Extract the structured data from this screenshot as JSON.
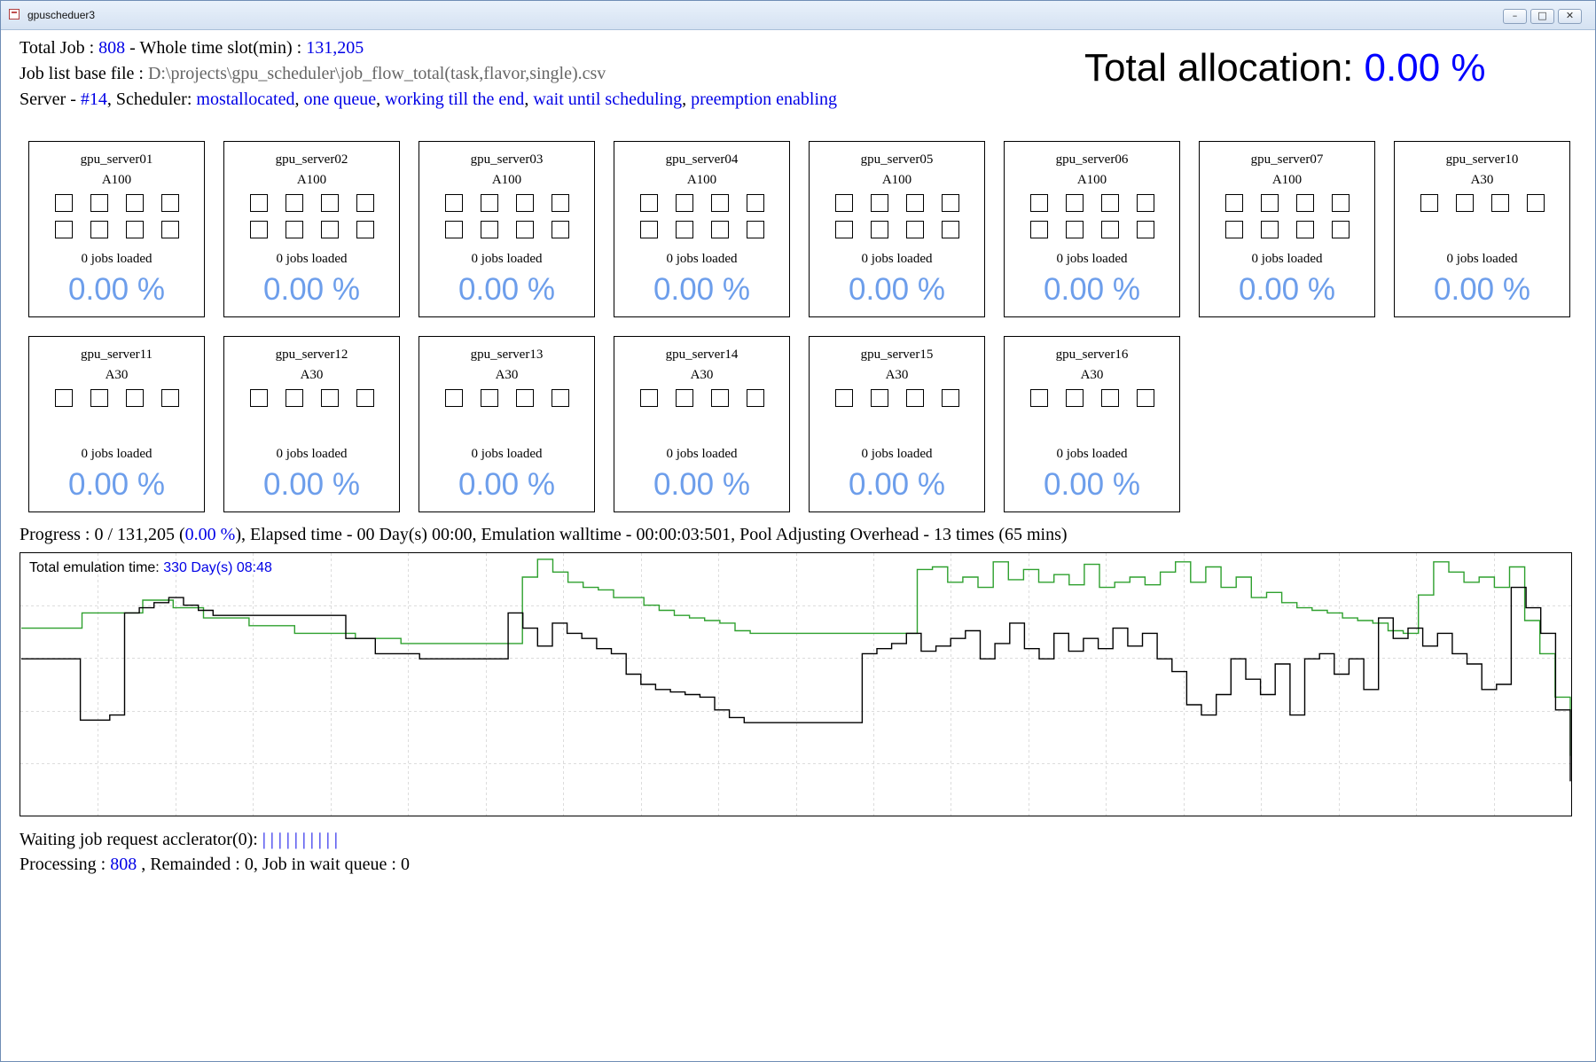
{
  "window": {
    "title": "gpuscheduer3"
  },
  "header": {
    "total_job_label": "Total Job : ",
    "total_job": "808",
    "whole_slot_label": " - Whole time slot(min) : ",
    "whole_slot": "131,205",
    "base_file_label": "Job list base file : ",
    "base_file": "D:\\projects\\gpu_scheduler\\job_flow_total(task,flavor,single).csv",
    "server_label": "Server - ",
    "server_count": "#14",
    "scheduler_label": ", Scheduler: ",
    "scheduler": [
      "mostallocated",
      "one queue",
      "working till the end",
      "wait until scheduling",
      "preemption enabling"
    ],
    "sep": ", "
  },
  "total_allocation": {
    "label": "Total allocation: ",
    "value": "0.00 %"
  },
  "servers": [
    {
      "name": "gpu_server01",
      "model": "A100",
      "gpus": 8,
      "jobs": "0 jobs loaded",
      "pct": "0.00 %"
    },
    {
      "name": "gpu_server02",
      "model": "A100",
      "gpus": 8,
      "jobs": "0 jobs loaded",
      "pct": "0.00 %"
    },
    {
      "name": "gpu_server03",
      "model": "A100",
      "gpus": 8,
      "jobs": "0 jobs loaded",
      "pct": "0.00 %"
    },
    {
      "name": "gpu_server04",
      "model": "A100",
      "gpus": 8,
      "jobs": "0 jobs loaded",
      "pct": "0.00 %"
    },
    {
      "name": "gpu_server05",
      "model": "A100",
      "gpus": 8,
      "jobs": "0 jobs loaded",
      "pct": "0.00 %"
    },
    {
      "name": "gpu_server06",
      "model": "A100",
      "gpus": 8,
      "jobs": "0 jobs loaded",
      "pct": "0.00 %"
    },
    {
      "name": "gpu_server07",
      "model": "A100",
      "gpus": 8,
      "jobs": "0 jobs loaded",
      "pct": "0.00 %"
    },
    {
      "name": "gpu_server10",
      "model": "A30",
      "gpus": 4,
      "jobs": "0 jobs loaded",
      "pct": "0.00 %"
    },
    {
      "name": "gpu_server11",
      "model": "A30",
      "gpus": 4,
      "jobs": "0 jobs loaded",
      "pct": "0.00 %"
    },
    {
      "name": "gpu_server12",
      "model": "A30",
      "gpus": 4,
      "jobs": "0 jobs loaded",
      "pct": "0.00 %"
    },
    {
      "name": "gpu_server13",
      "model": "A30",
      "gpus": 4,
      "jobs": "0 jobs loaded",
      "pct": "0.00 %"
    },
    {
      "name": "gpu_server14",
      "model": "A30",
      "gpus": 4,
      "jobs": "0 jobs loaded",
      "pct": "0.00 %"
    },
    {
      "name": "gpu_server15",
      "model": "A30",
      "gpus": 4,
      "jobs": "0 jobs loaded",
      "pct": "0.00 %"
    },
    {
      "name": "gpu_server16",
      "model": "A30",
      "gpus": 4,
      "jobs": "0 jobs loaded",
      "pct": "0.00 %"
    }
  ],
  "progress": {
    "prefix": "Progress : 0 / 131,205 (",
    "pct": "0.00 %",
    "suffix": "), Elapsed time - 00 Day(s) 00:00, Emulation walltime - 00:00:03:501, Pool Adjusting Overhead - 13 times (65 mins)"
  },
  "chart_data": {
    "type": "line",
    "title": "",
    "label": "Total emulation time: ",
    "label_value": "330 Day(s) 08:48",
    "x_range": [
      0,
      131205
    ],
    "y_range": [
      0,
      100
    ],
    "grid": true,
    "series": [
      {
        "color": "#2ea02e",
        "values": [
          72,
          72,
          72,
          72,
          78,
          78,
          78,
          78,
          83,
          83,
          80,
          80,
          76,
          76,
          76,
          73,
          73,
          73,
          70,
          70,
          70,
          70,
          68,
          68,
          68,
          66,
          66,
          66,
          66,
          66,
          66,
          66,
          66,
          92,
          99,
          94,
          90,
          88,
          87,
          84,
          84,
          81,
          79,
          77,
          76,
          75,
          74,
          71,
          70,
          70,
          70,
          70,
          70,
          70,
          70,
          70,
          70,
          70,
          70,
          95,
          96,
          90,
          92,
          88,
          98,
          91,
          95,
          90,
          93,
          89,
          97,
          88,
          90,
          92,
          89,
          94,
          98,
          90,
          96,
          88,
          92,
          84,
          86,
          82,
          80,
          79,
          78,
          76,
          75,
          74,
          71,
          70,
          85,
          98,
          94,
          90,
          92,
          88,
          96,
          75,
          62,
          45,
          22
        ]
      },
      {
        "color": "#000000",
        "values": [
          60,
          60,
          60,
          60,
          36,
          36,
          38,
          78,
          80,
          82,
          84,
          81,
          79,
          77,
          77,
          77,
          77,
          77,
          77,
          77,
          77,
          77,
          68,
          68,
          62,
          62,
          62,
          60,
          60,
          60,
          60,
          60,
          60,
          78,
          72,
          65,
          74,
          70,
          68,
          64,
          62,
          54,
          50,
          48,
          47,
          46,
          45,
          40,
          37,
          35,
          35,
          35,
          35,
          35,
          35,
          35,
          35,
          62,
          64,
          66,
          70,
          63,
          65,
          68,
          71,
          60,
          66,
          74,
          64,
          60,
          70,
          63,
          68,
          64,
          72,
          65,
          70,
          60,
          55,
          42,
          38,
          46,
          60,
          52,
          46,
          58,
          38,
          60,
          62,
          54,
          60,
          48,
          76,
          68,
          72,
          65,
          70,
          62,
          58,
          48,
          50,
          88,
          80,
          70,
          40,
          12
        ]
      }
    ]
  },
  "waiting": {
    "label": "Waiting job request acclerator(0): ",
    "bars": "| | | | | | | | | |"
  },
  "processing": {
    "label": "Processing : ",
    "value": "808",
    "suffix": " , Remainded : 0, Job in wait queue : 0"
  }
}
